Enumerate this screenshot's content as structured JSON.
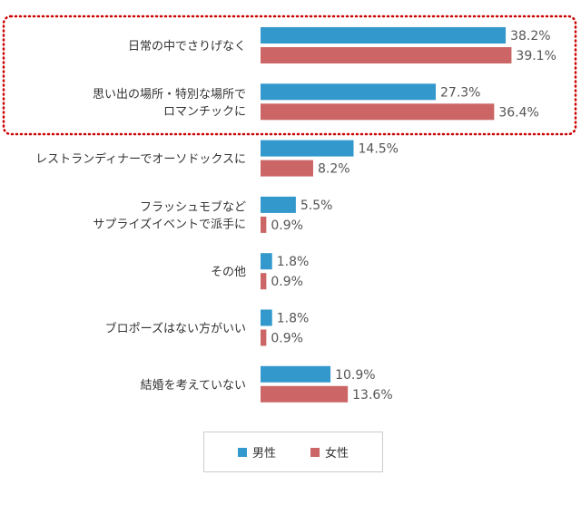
{
  "chart_data": {
    "type": "bar",
    "orientation": "horizontal",
    "categories": [
      [
        "日常の中でさりげなく"
      ],
      [
        "思い出の場所・特別な場所で",
        "ロマンチックに"
      ],
      [
        "レストランディナーでオーソドックスに"
      ],
      [
        "フラッシュモブなど",
        "サプライズイベントで派手に"
      ],
      [
        "その他"
      ],
      [
        "ブロポーズはない方がいい"
      ],
      [
        "結婚を考えていない"
      ]
    ],
    "series": [
      {
        "name": "男性",
        "color": "#3399cc",
        "values": [
          38.2,
          27.3,
          14.5,
          5.5,
          1.8,
          1.8,
          10.9
        ],
        "labels": [
          "38.2%",
          "27.3%",
          "14.5%",
          "5.5%",
          "1.8%",
          "1.8%",
          "10.9%"
        ]
      },
      {
        "name": "女性",
        "color": "#cc6666",
        "values": [
          39.1,
          36.4,
          8.2,
          0.9,
          0.9,
          0.9,
          13.6
        ],
        "labels": [
          "39.1%",
          "36.4%",
          "8.2%",
          "0.9%",
          "0.9%",
          "0.9%",
          "13.6%"
        ]
      }
    ],
    "xlim": [
      0,
      40
    ],
    "highlight": {
      "categories": [
        0,
        1
      ],
      "style": "dotted-border",
      "color": "#cc0000"
    },
    "legend_position": "bottom"
  },
  "legend": {
    "male": {
      "label": "男性",
      "color": "#3399cc"
    },
    "female": {
      "label": "女性",
      "color": "#cc6666"
    }
  }
}
